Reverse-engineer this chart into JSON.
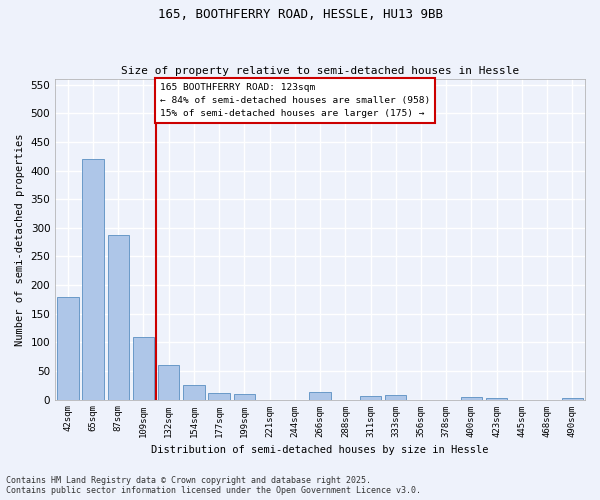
{
  "title1": "165, BOOTHFERRY ROAD, HESSLE, HU13 9BB",
  "title2": "Size of property relative to semi-detached houses in Hessle",
  "xlabel": "Distribution of semi-detached houses by size in Hessle",
  "ylabel": "Number of semi-detached properties",
  "categories": [
    "42sqm",
    "65sqm",
    "87sqm",
    "109sqm",
    "132sqm",
    "154sqm",
    "177sqm",
    "199sqm",
    "221sqm",
    "244sqm",
    "266sqm",
    "288sqm",
    "311sqm",
    "333sqm",
    "356sqm",
    "378sqm",
    "400sqm",
    "423sqm",
    "445sqm",
    "468sqm",
    "490sqm"
  ],
  "values": [
    180,
    420,
    287,
    110,
    60,
    25,
    12,
    10,
    0,
    0,
    13,
    0,
    6,
    8,
    0,
    0,
    5,
    2,
    0,
    0,
    3
  ],
  "bar_color": "#aec6e8",
  "bar_edge_color": "#5a8fc2",
  "vline_x_index": 3,
  "vline_color": "#cc0000",
  "vline_label": "165 BOOTHFERRY ROAD: 123sqm",
  "annotation_smaller": "← 84% of semi-detached houses are smaller (958)",
  "annotation_larger": "15% of semi-detached houses are larger (175) →",
  "box_color": "#cc0000",
  "ylim": [
    0,
    560
  ],
  "yticks": [
    0,
    50,
    100,
    150,
    200,
    250,
    300,
    350,
    400,
    450,
    500,
    550
  ],
  "footer1": "Contains HM Land Registry data © Crown copyright and database right 2025.",
  "footer2": "Contains public sector information licensed under the Open Government Licence v3.0.",
  "bg_color": "#eef2fb",
  "grid_color": "#ffffff"
}
